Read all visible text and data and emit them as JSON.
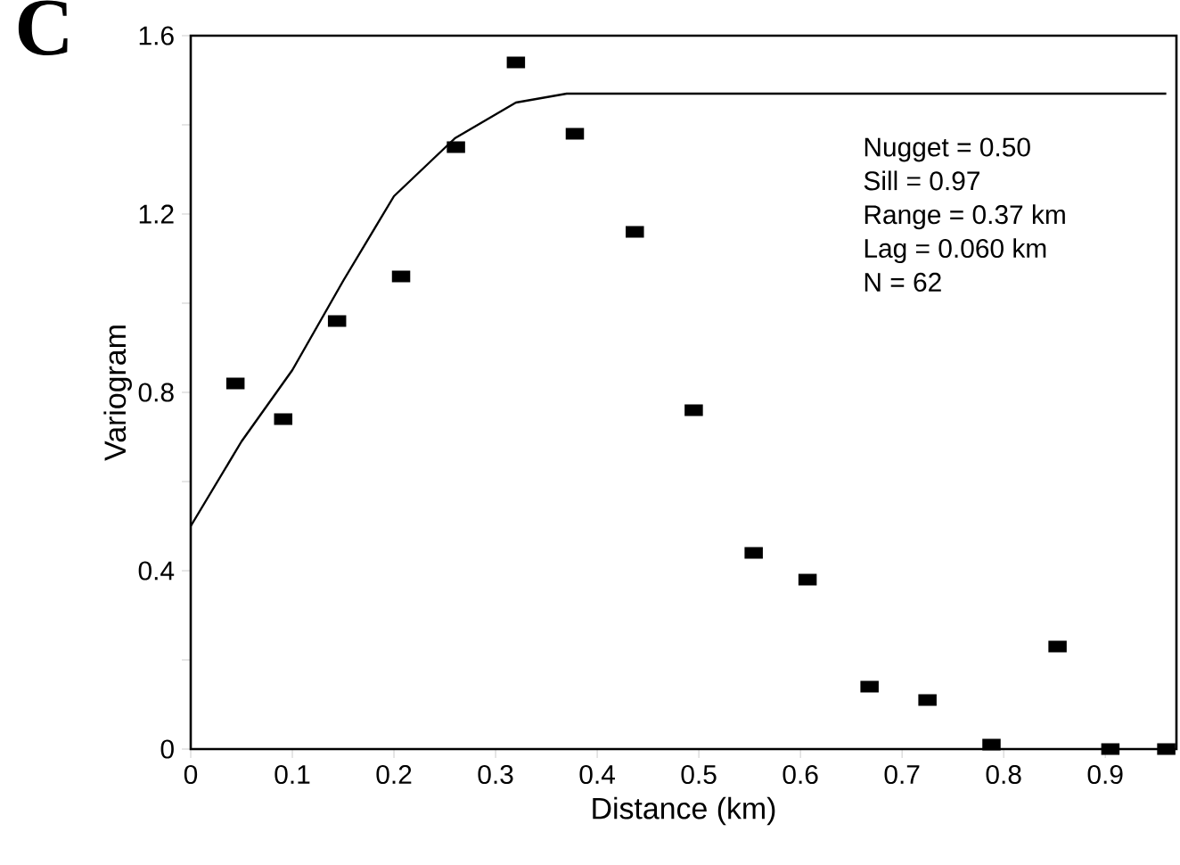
{
  "chart_data": {
    "type": "scatter",
    "xlabel": "Distance (km)",
    "ylabel": "Variogram",
    "annotations": [
      "C",
      "Nugget = 0.50",
      "Sill = 0.97",
      "Range = 0.37 km",
      "Lag = 0.060 km",
      "N = 62"
    ],
    "xlim": [
      0,
      0.97
    ],
    "ylim": [
      0,
      1.6
    ],
    "xticks": [
      0,
      0.1,
      0.2,
      0.3,
      0.4,
      0.5,
      0.6,
      0.7,
      0.8,
      0.9
    ],
    "yticks": [
      0,
      {
        "value": 0.2,
        "label": null
      },
      0.4,
      {
        "value": 0.6,
        "label": null
      },
      0.8,
      {
        "value": 1.0,
        "label": null
      },
      1.2,
      {
        "value": 1.4,
        "label": null
      },
      1.6
    ],
    "grid": false,
    "series": [
      {
        "marker": "square",
        "color": "#000000",
        "x": [
          0.044,
          0.091,
          0.144,
          0.207,
          0.261,
          0.32,
          0.378,
          0.437,
          0.495,
          0.554,
          0.607,
          0.668,
          0.725,
          0.788,
          0.853,
          0.905,
          0.96
        ],
        "values": [
          0.82,
          0.74,
          0.96,
          1.06,
          1.35,
          1.54,
          1.38,
          1.16,
          0.76,
          0.44,
          0.38,
          0.14,
          0.11,
          0.01,
          0.23,
          0.0,
          0.0
        ]
      },
      {
        "type": "line",
        "marker": "none",
        "line_style": "solid",
        "color": "#000000",
        "x": [
          0,
          0.05,
          0.1,
          0.15,
          0.2,
          0.26,
          0.32,
          0.37,
          0.96
        ],
        "values": [
          0.5,
          0.69,
          0.85,
          1.05,
          1.24,
          1.37,
          1.45,
          1.47,
          1.47
        ]
      }
    ]
  }
}
